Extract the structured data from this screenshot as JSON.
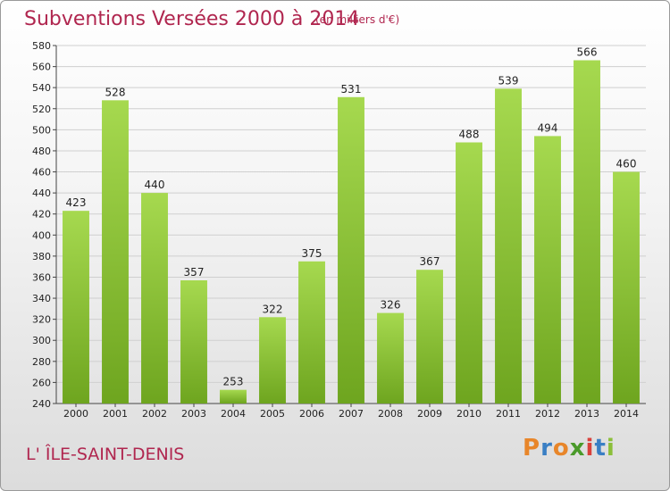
{
  "header": {
    "title": "Subventions Versées 2000 à 2014",
    "subtitle": "(en milliers d'€)"
  },
  "footer": {
    "commune": "L' ÎLE-SAINT-DENIS",
    "logo": {
      "letters": [
        "P",
        "r",
        "o",
        "x",
        "i",
        "t",
        "i"
      ],
      "colors": [
        "#e8862a",
        "#3a7fc4",
        "#e8862a",
        "#4a9a2a",
        "#d9413b",
        "#3a7fc4",
        "#8bbf3a"
      ]
    }
  },
  "colors": {
    "bar_light": "#a6d94f",
    "bar_dark": "#6ea51f",
    "title": "#b0264f"
  },
  "chart_data": {
    "type": "bar",
    "title": "Subventions Versées 2000 à 2014",
    "subtitle": "(en milliers d'€)",
    "categories": [
      "2000",
      "2001",
      "2002",
      "2003",
      "2004",
      "2005",
      "2006",
      "2007",
      "2008",
      "2009",
      "2010",
      "2011",
      "2012",
      "2013",
      "2014"
    ],
    "values": [
      423,
      528,
      440,
      357,
      253,
      322,
      375,
      531,
      326,
      367,
      488,
      539,
      494,
      566,
      460
    ],
    "ylim": [
      240,
      580
    ],
    "yticks": [
      240,
      260,
      280,
      300,
      320,
      340,
      360,
      380,
      400,
      420,
      440,
      460,
      480,
      500,
      520,
      540,
      560,
      580
    ],
    "grid": true,
    "data_labels": true
  }
}
